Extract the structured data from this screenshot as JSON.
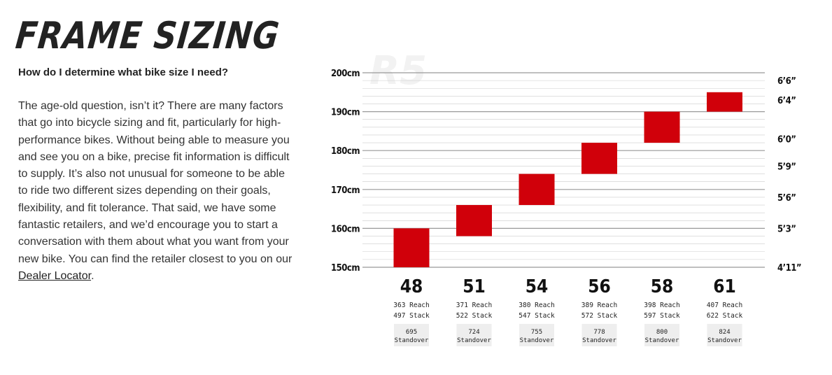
{
  "header": {
    "title": "FRAME SIZING"
  },
  "faq": {
    "question": "How do I determine what bike size I need?",
    "answer": "The age-old question, isn’t it? There are many factors that go into bicycle sizing and fit, particularly for high-performance bikes. Without being able to measure you and see you on a bike, precise fit information is difficult to supply. It’s also not unusual for someone to be able to ride two different sizes depending on their goals, flexibility, and fit tolerance. That said, we have some fantastic retailers, and we’d encourage you to start a conversation with them about what you want from your new bike. You can find the retailer closest to you on our",
    "link_text": "Dealer Locator",
    "end": "."
  },
  "colors": {
    "bar": "#d0000a",
    "grid": "#cccccc",
    "major_grid": "#999999",
    "text": "#111111"
  },
  "chart_data": {
    "type": "bar",
    "watermark": "R5",
    "ylim": [
      150,
      200
    ],
    "y_ticks": [
      "150cm",
      "160cm",
      "170cm",
      "180cm",
      "190cm",
      "200cm"
    ],
    "y_tick_values": [
      150,
      160,
      170,
      180,
      190,
      200
    ],
    "right_ticks": [
      "4’11”",
      "5’3”",
      "5’6”",
      "5’9”",
      "6’0”",
      "6’4”",
      "6’6”"
    ],
    "right_tick_values": [
      150,
      160,
      168,
      176,
      183,
      193,
      198
    ],
    "categories": [
      "48",
      "51",
      "54",
      "56",
      "58",
      "61"
    ],
    "ranges": [
      [
        150,
        160
      ],
      [
        158,
        166
      ],
      [
        166,
        174
      ],
      [
        174,
        182
      ],
      [
        182,
        190
      ],
      [
        190,
        195
      ]
    ],
    "reach": [
      "363 Reach",
      "371 Reach",
      "380 Reach",
      "389 Reach",
      "398 Reach",
      "407 Reach"
    ],
    "stack": [
      "497 Stack",
      "522 Stack",
      "547 Stack",
      "572 Stack",
      "597 Stack",
      "622 Stack"
    ],
    "standover": [
      "695",
      "724",
      "755",
      "778",
      "800",
      "824"
    ],
    "standover_label": "Standover",
    "grid": true
  }
}
